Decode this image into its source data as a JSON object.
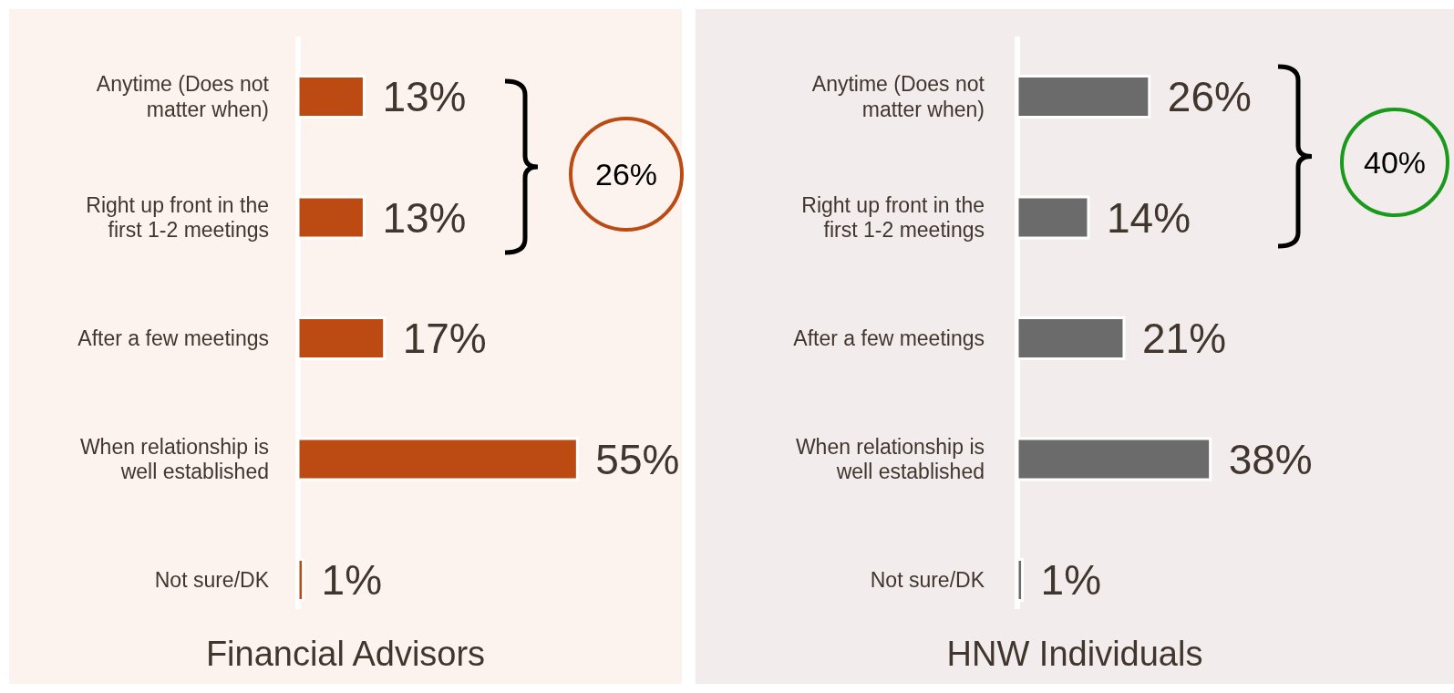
{
  "chart_data": [
    {
      "type": "bar",
      "orientation": "horizontal",
      "title": "Financial Advisors",
      "categories": [
        "Anytime (Does not matter when)",
        "Right up front in the first 1-2 meetings",
        "After a few meetings",
        "When relationship is well established",
        "Not sure/DK"
      ],
      "values": [
        13,
        13,
        17,
        55,
        1
      ],
      "value_labels": [
        "13%",
        "13%",
        "17%",
        "55%",
        "1%"
      ],
      "color": "#bc4b13",
      "annotations": [
        "26%"
      ]
    },
    {
      "type": "bar",
      "orientation": "horizontal",
      "title": "HNW Individuals",
      "categories": [
        "Anytime (Does not matter when)",
        "Right up front in the first 1-2 meetings",
        "After a few meetings",
        "When relationship is well established",
        "Not sure/DK"
      ],
      "values": [
        26,
        14,
        21,
        38,
        1
      ],
      "value_labels": [
        "26%",
        "14%",
        "21%",
        "38%",
        "1%"
      ],
      "color": "#6b6b6b",
      "annotations": [
        "40%"
      ]
    }
  ]
}
